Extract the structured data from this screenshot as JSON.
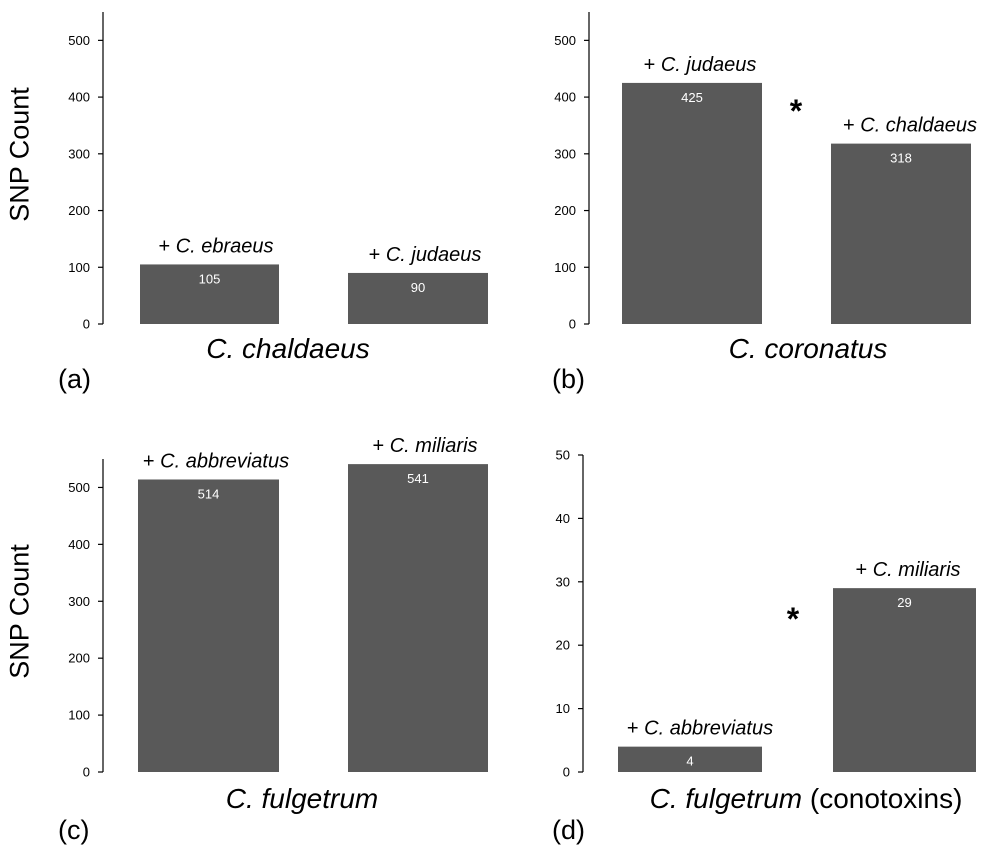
{
  "figure": {
    "y_axis_label": "SNP Count"
  },
  "colors": {
    "bar": "#595959",
    "bar_label": "#ffffff",
    "axis": "#000000"
  },
  "chart_data": [
    {
      "type": "bar",
      "panel": "(a)",
      "xlabel": "C. chaldaeus",
      "xlabel_suffix": "",
      "ylabel": "SNP Count",
      "ylim": [
        0,
        550
      ],
      "yticks": [
        0,
        100,
        200,
        300,
        400,
        500
      ],
      "categories": [
        "+ C. ebraeus",
        "+ C. judaeus"
      ],
      "values": [
        105,
        90
      ],
      "significance": ""
    },
    {
      "type": "bar",
      "panel": "(b)",
      "xlabel": "C. coronatus",
      "xlabel_suffix": "",
      "ylabel": "",
      "ylim": [
        0,
        550
      ],
      "yticks": [
        0,
        100,
        200,
        300,
        400,
        500
      ],
      "categories": [
        "+ C. judaeus",
        "+ C. chaldaeus"
      ],
      "values": [
        425,
        318
      ],
      "significance": "*"
    },
    {
      "type": "bar",
      "panel": "(c)",
      "xlabel": "C. fulgetrum",
      "xlabel_suffix": "",
      "ylabel": "SNP Count",
      "ylim": [
        0,
        550
      ],
      "yticks": [
        0,
        100,
        200,
        300,
        400,
        500
      ],
      "categories": [
        "+ C. abbreviatus",
        "+ C. miliaris"
      ],
      "values": [
        514,
        541
      ],
      "significance": ""
    },
    {
      "type": "bar",
      "panel": "(d)",
      "xlabel": "C. fulgetrum",
      "xlabel_suffix": " (conotoxins)",
      "ylabel": "",
      "ylim": [
        0,
        50
      ],
      "yticks": [
        0,
        10,
        20,
        30,
        40,
        50
      ],
      "categories": [
        "+ C. abbreviatus",
        "+ C. miliaris"
      ],
      "values": [
        4,
        29
      ],
      "significance": "*"
    }
  ]
}
